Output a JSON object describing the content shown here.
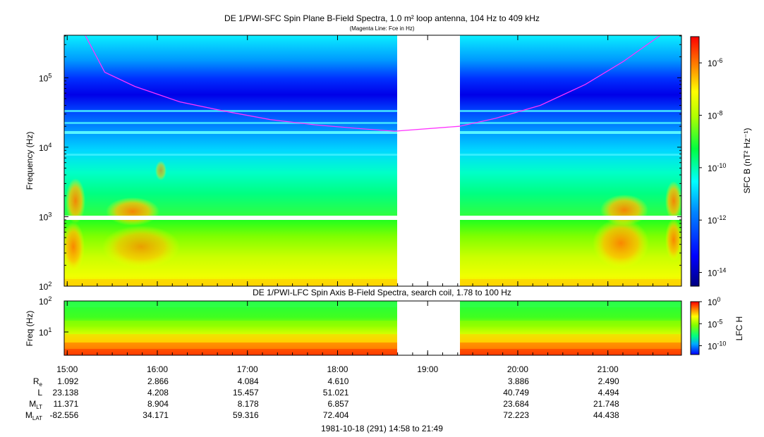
{
  "titles": {
    "sfc": "DE 1/PWI-SFC  Spin Plane B-Field Spectra, 1.0 m² loop antenna, 104 Hz to 409 kHz",
    "sfc_sub": "(Magenta Line: Fce in Hz)",
    "lfc": "DE 1/PWI-LFC  Spin Axis B-Field Spectra, search coil, 1.78 to 100 Hz"
  },
  "chart_data": [
    {
      "type": "heatmap",
      "title": "DE 1/PWI-SFC  Spin Plane B-Field Spectra, 1.0 m² loop antenna, 104 Hz to 409 kHz",
      "ylabel": "Frequency (Hz)",
      "yscale": "log",
      "ylim": [
        100,
        409000
      ],
      "ytick_labels": [
        "10^2",
        "10^3",
        "10^4",
        "10^5"
      ],
      "xlim": [
        "14:58",
        "21:49"
      ],
      "xtick_labels": [
        "15:00",
        "16:00",
        "17:00",
        "18:00",
        "19:00",
        "20:00",
        "21:00"
      ],
      "data_gap": [
        "18:39",
        "19:20"
      ],
      "colorbar": {
        "label": "SFC B (nT² Hz⁻¹)",
        "scale": "log",
        "range": [
          3e-15,
          1e-05
        ],
        "tick_labels": [
          "10^-6",
          "10^-8",
          "10^-10",
          "10^-12",
          "10^-14"
        ]
      },
      "overlay_line": {
        "name": "Fce",
        "color": "#ff33ff",
        "points": [
          [
            "15:12",
            409000
          ],
          [
            "15:25",
            120000
          ],
          [
            "15:45",
            75000
          ],
          [
            "16:15",
            45000
          ],
          [
            "16:45",
            33000
          ],
          [
            "17:15",
            25000
          ],
          [
            "17:45",
            21000
          ],
          [
            "18:15",
            18500
          ],
          [
            "18:38",
            17000
          ],
          [
            "19:21",
            20000
          ],
          [
            "19:45",
            26000
          ],
          [
            "20:15",
            40000
          ],
          [
            "20:45",
            80000
          ],
          [
            "21:10",
            170000
          ],
          [
            "21:35",
            409000
          ]
        ]
      }
    },
    {
      "type": "heatmap",
      "title": "DE 1/PWI-LFC  Spin Axis B-Field Spectra, search coil, 1.78 to 100 Hz",
      "ylabel": "Freq (Hz)",
      "yscale": "log",
      "ylim": [
        1.78,
        100
      ],
      "ytick_labels": [
        "10^1",
        "10^2"
      ],
      "colorbar": {
        "label": "LFC H",
        "scale": "log",
        "range": [
          1e-12,
          1
        ],
        "tick_labels": [
          "10^0",
          "10^-5",
          "10^-10"
        ]
      }
    }
  ],
  "ephemeris": {
    "rows": [
      {
        "label": "R",
        "sub": "e",
        "values": [
          "1.092",
          "2.866",
          "4.084",
          "4.610",
          "",
          "3.886",
          "2.490"
        ]
      },
      {
        "label": "L",
        "sub": "",
        "values": [
          "23.138",
          "4.208",
          "15.457",
          "51.021",
          "",
          "40.749",
          "4.494"
        ]
      },
      {
        "label": "M",
        "sub": "LT",
        "values": [
          "11.371",
          "8.904",
          "8.178",
          "6.857",
          "",
          "23.684",
          "21.748"
        ]
      },
      {
        "label": "M",
        "sub": "LAT",
        "values": [
          "-82.556",
          "34.171",
          "59.316",
          "72.404",
          "",
          "72.223",
          "44.438"
        ]
      }
    ]
  },
  "footer": "1981-10-18 (291) 14:58 to 21:49",
  "colors": {
    "fce_line": "#ff33ff",
    "gap": "#ffffff"
  }
}
